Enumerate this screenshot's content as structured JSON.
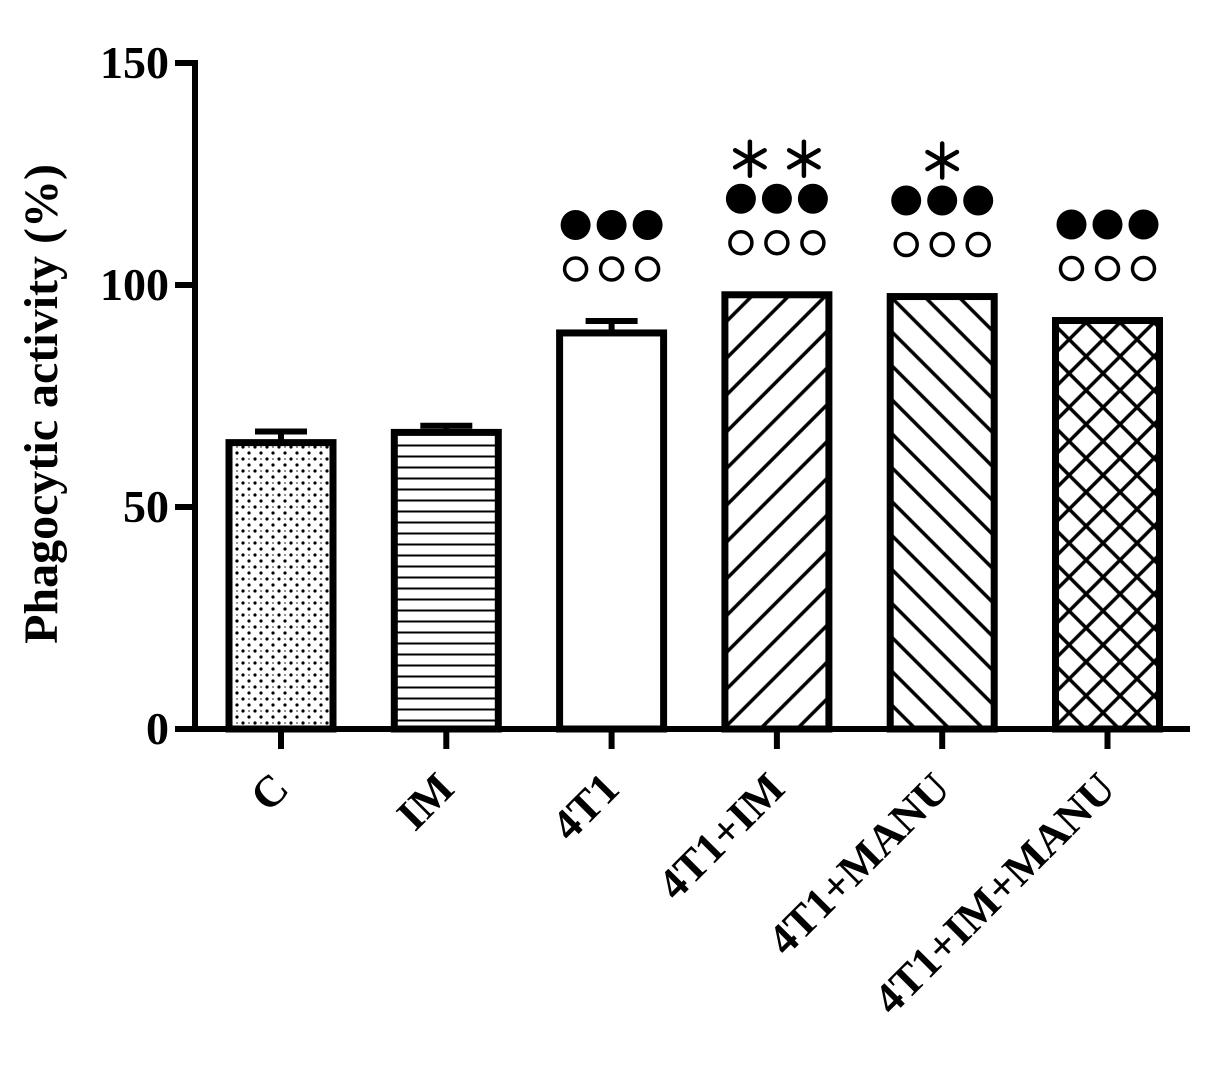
{
  "chart_data": {
    "type": "bar",
    "title": "",
    "xlabel": "",
    "ylabel": "Phagocytic activity (%)",
    "ylim": [
      0,
      150
    ],
    "yticks": [
      0,
      50,
      100,
      150
    ],
    "grid": false,
    "categories": [
      "C",
      "IM",
      "4T1",
      "4T1+IM",
      "4T1+MANU",
      "4T1+IM+MANU"
    ],
    "values": [
      64.5,
      66.8,
      89.2,
      97.8,
      97.4,
      92.0
    ],
    "error": [
      2.5,
      1.5,
      2.7,
      0.5,
      0.5,
      0.5
    ],
    "patterns": [
      "dots",
      "horizontal",
      "none",
      "diag-down",
      "diag-up",
      "crosshatch"
    ],
    "annotations": [
      {
        "category": "4T1",
        "rows": [
          "●●●",
          "○○○"
        ]
      },
      {
        "category": "4T1+IM",
        "rows": [
          "**",
          "●●●",
          "○○○"
        ]
      },
      {
        "category": "4T1+MANU",
        "rows": [
          "*",
          "●●●",
          "○○○"
        ]
      },
      {
        "category": "4T1+IM+MANU",
        "rows": [
          "●●●",
          "○○○"
        ]
      }
    ]
  }
}
